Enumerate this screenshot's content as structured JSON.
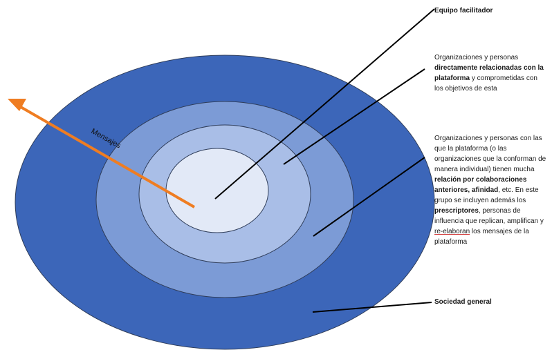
{
  "colors": {
    "outer_ring": "#3c66b9",
    "second_ring": "#7c9bd6",
    "third_ring": "#a9bee7",
    "inner_circle": "#e2e9f7",
    "ring_border": "#2f3d59",
    "arrow": "#ef7d22",
    "leader_lines": "#000000"
  },
  "arrow_label": "Mensajes",
  "labels": {
    "equipo": "Equipo facilitador",
    "directas": {
      "p1": "Organizaciones y personas ",
      "b1": "directamente relacionadas con la plataforma",
      "p2": " y comprometidas con los objetivos de esta"
    },
    "relacion": {
      "p1": "Organizaciones y personas con las que la plataforma (o las organizaciones que la conforman de manera individual) tienen mucha ",
      "b1": "relación por colaboraciones anteriores, afinidad",
      "p2": ", etc. En este grupo se incluyen además los ",
      "b2": "prescriptores",
      "p3": ", personas de influencia que replican, amplifican y ",
      "u1": "re-elaboran",
      "p4": " los mensajes de la plataforma"
    },
    "sociedad": "Sociedad general"
  }
}
